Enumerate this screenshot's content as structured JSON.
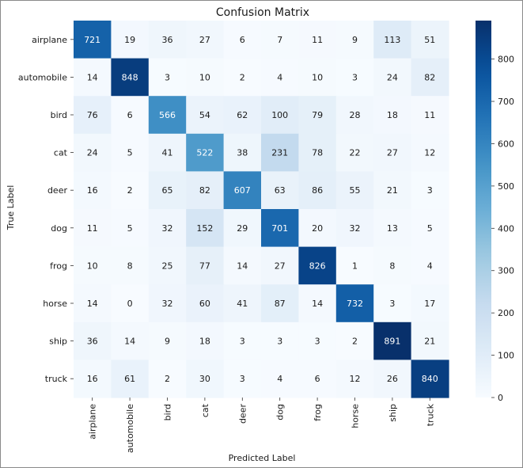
{
  "chart_data": {
    "type": "heatmap",
    "title": "Confusion Matrix",
    "xlabel": "Predicted Label",
    "ylabel": "True Label",
    "x_categories": [
      "airplane",
      "automobile",
      "bird",
      "cat",
      "deer",
      "dog",
      "frog",
      "horse",
      "ship",
      "truck"
    ],
    "y_categories": [
      "airplane",
      "automobile",
      "bird",
      "cat",
      "deer",
      "dog",
      "frog",
      "horse",
      "ship",
      "truck"
    ],
    "values": [
      [
        721,
        19,
        36,
        27,
        6,
        7,
        11,
        9,
        113,
        51
      ],
      [
        14,
        848,
        3,
        10,
        2,
        4,
        10,
        3,
        24,
        82
      ],
      [
        76,
        6,
        566,
        54,
        62,
        100,
        79,
        28,
        18,
        11
      ],
      [
        24,
        5,
        41,
        522,
        38,
        231,
        78,
        22,
        27,
        12
      ],
      [
        16,
        2,
        65,
        82,
        607,
        63,
        86,
        55,
        21,
        3
      ],
      [
        11,
        5,
        32,
        152,
        29,
        701,
        20,
        32,
        13,
        5
      ],
      [
        10,
        8,
        25,
        77,
        14,
        27,
        826,
        1,
        8,
        4
      ],
      [
        14,
        0,
        32,
        60,
        41,
        87,
        14,
        732,
        3,
        17
      ],
      [
        36,
        14,
        9,
        18,
        3,
        3,
        3,
        2,
        891,
        21
      ],
      [
        16,
        61,
        2,
        30,
        3,
        4,
        6,
        12,
        26,
        840
      ]
    ],
    "colormap": "Blues",
    "colorbar": {
      "range": [
        0,
        891
      ],
      "ticks": [
        0,
        100,
        200,
        300,
        400,
        500,
        600,
        700,
        800
      ]
    }
  }
}
